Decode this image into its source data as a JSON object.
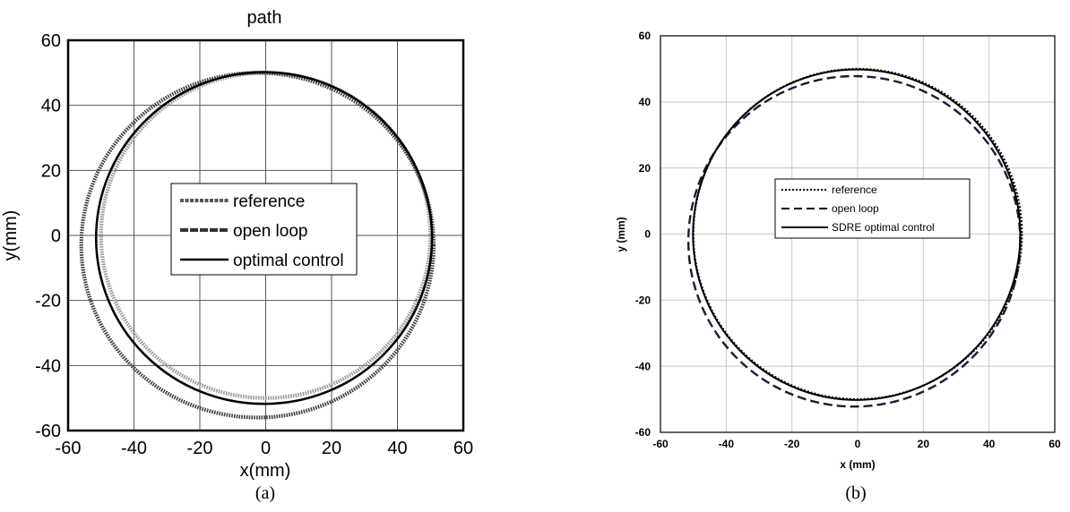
{
  "chart_data": [
    {
      "type": "line",
      "panel_label": "(a)",
      "title": "path",
      "xlabel": "x(mm)",
      "ylabel": "y(mm)",
      "xlim": [
        -60,
        60
      ],
      "ylim": [
        -60,
        60
      ],
      "xticks": [
        "-60",
        "-40",
        "-20",
        "0",
        "20",
        "40",
        "60"
      ],
      "yticks": [
        "-60",
        "-40",
        "-20",
        "0",
        "20",
        "40",
        "60"
      ],
      "grid": true,
      "legend_position": "center",
      "series": [
        {
          "name": "reference",
          "style": "dotted-gray",
          "color": "#9a9a9a",
          "shape": "circle",
          "center": [
            0,
            0
          ],
          "rx": 50,
          "ry": 50
        },
        {
          "name": "open loop",
          "style": "dotted-dark",
          "color": "#444444",
          "shape": "circle",
          "center": [
            -2.5,
            -3
          ],
          "rx": 53.5,
          "ry": 53
        },
        {
          "name": "optimal control",
          "style": "solid",
          "color": "#000000",
          "shape": "circle",
          "center": [
            -0.5,
            -0.8
          ],
          "rx": 51,
          "ry": 51
        }
      ]
    },
    {
      "type": "line",
      "panel_label": "(b)",
      "title": "",
      "xlabel": "x (mm)",
      "ylabel": "y (mm)",
      "xlim": [
        -60,
        60
      ],
      "ylim": [
        -60,
        60
      ],
      "xticks": [
        "-60",
        "-40",
        "-20",
        "0",
        "20",
        "40",
        "60"
      ],
      "yticks": [
        "-60",
        "-40",
        "-20",
        "0",
        "20",
        "40",
        "60"
      ],
      "grid": true,
      "legend_position": "center",
      "series": [
        {
          "name": "reference",
          "style": "dotted",
          "color": "#000000",
          "shape": "circle",
          "center": [
            0,
            0
          ],
          "rx": 50,
          "ry": 50
        },
        {
          "name": "open loop",
          "style": "dashed",
          "color": "#1a1a2e",
          "shape": "circle",
          "center": [
            -1,
            -2.2
          ],
          "rx": 50.5,
          "ry": 50
        },
        {
          "name": "SDRE optimal control",
          "style": "solid",
          "color": "#000000",
          "shape": "circle",
          "center": [
            -0.3,
            -0.2
          ],
          "rx": 49.8,
          "ry": 50
        }
      ]
    }
  ]
}
